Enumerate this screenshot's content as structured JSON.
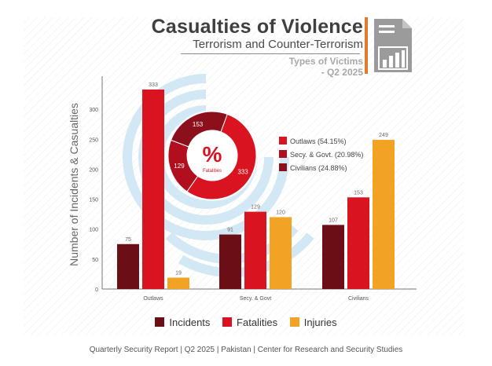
{
  "header": {
    "title": "Casualties of Violence",
    "subtitle": "Terrorism and Counter-Terrorism",
    "subtitle2_line1": "Types of Victims",
    "subtitle2_line2": "- Q2 2025"
  },
  "colors": {
    "incidents": "#6b0e16",
    "fatalities": "#d9131f",
    "injuries": "#f2a323",
    "watermark": "#cfe6f4"
  },
  "chart_data": {
    "type": "bar",
    "categories": [
      "Outlaws",
      "Secy. & Govt",
      "Civilians"
    ],
    "series": [
      {
        "name": "Incidents",
        "values": [
          75,
          91,
          107
        ]
      },
      {
        "name": "Fatalities",
        "values": [
          333,
          129,
          153
        ]
      },
      {
        "name": "Injuries",
        "values": [
          19,
          120,
          249
        ]
      }
    ],
    "ylabel": "Number of Incidents & Casualties",
    "ylim": [
      0,
      350
    ],
    "yticks": [
      0,
      50,
      100,
      150,
      200,
      250,
      300
    ],
    "inset_pie": {
      "type": "pie",
      "center_text": "%",
      "center_subtext": "Fatalities",
      "slices": [
        {
          "label": "Outlaws (54.15%)",
          "value": 333
        },
        {
          "label": "Secy. & Govt. (20.98%)",
          "value": 129
        },
        {
          "label": "Civilians (24.88%)",
          "value": 153
        }
      ]
    }
  },
  "footer": "Quarterly Security Report | Q2 2025 | Pakistan | Center for Research and Security Studies"
}
